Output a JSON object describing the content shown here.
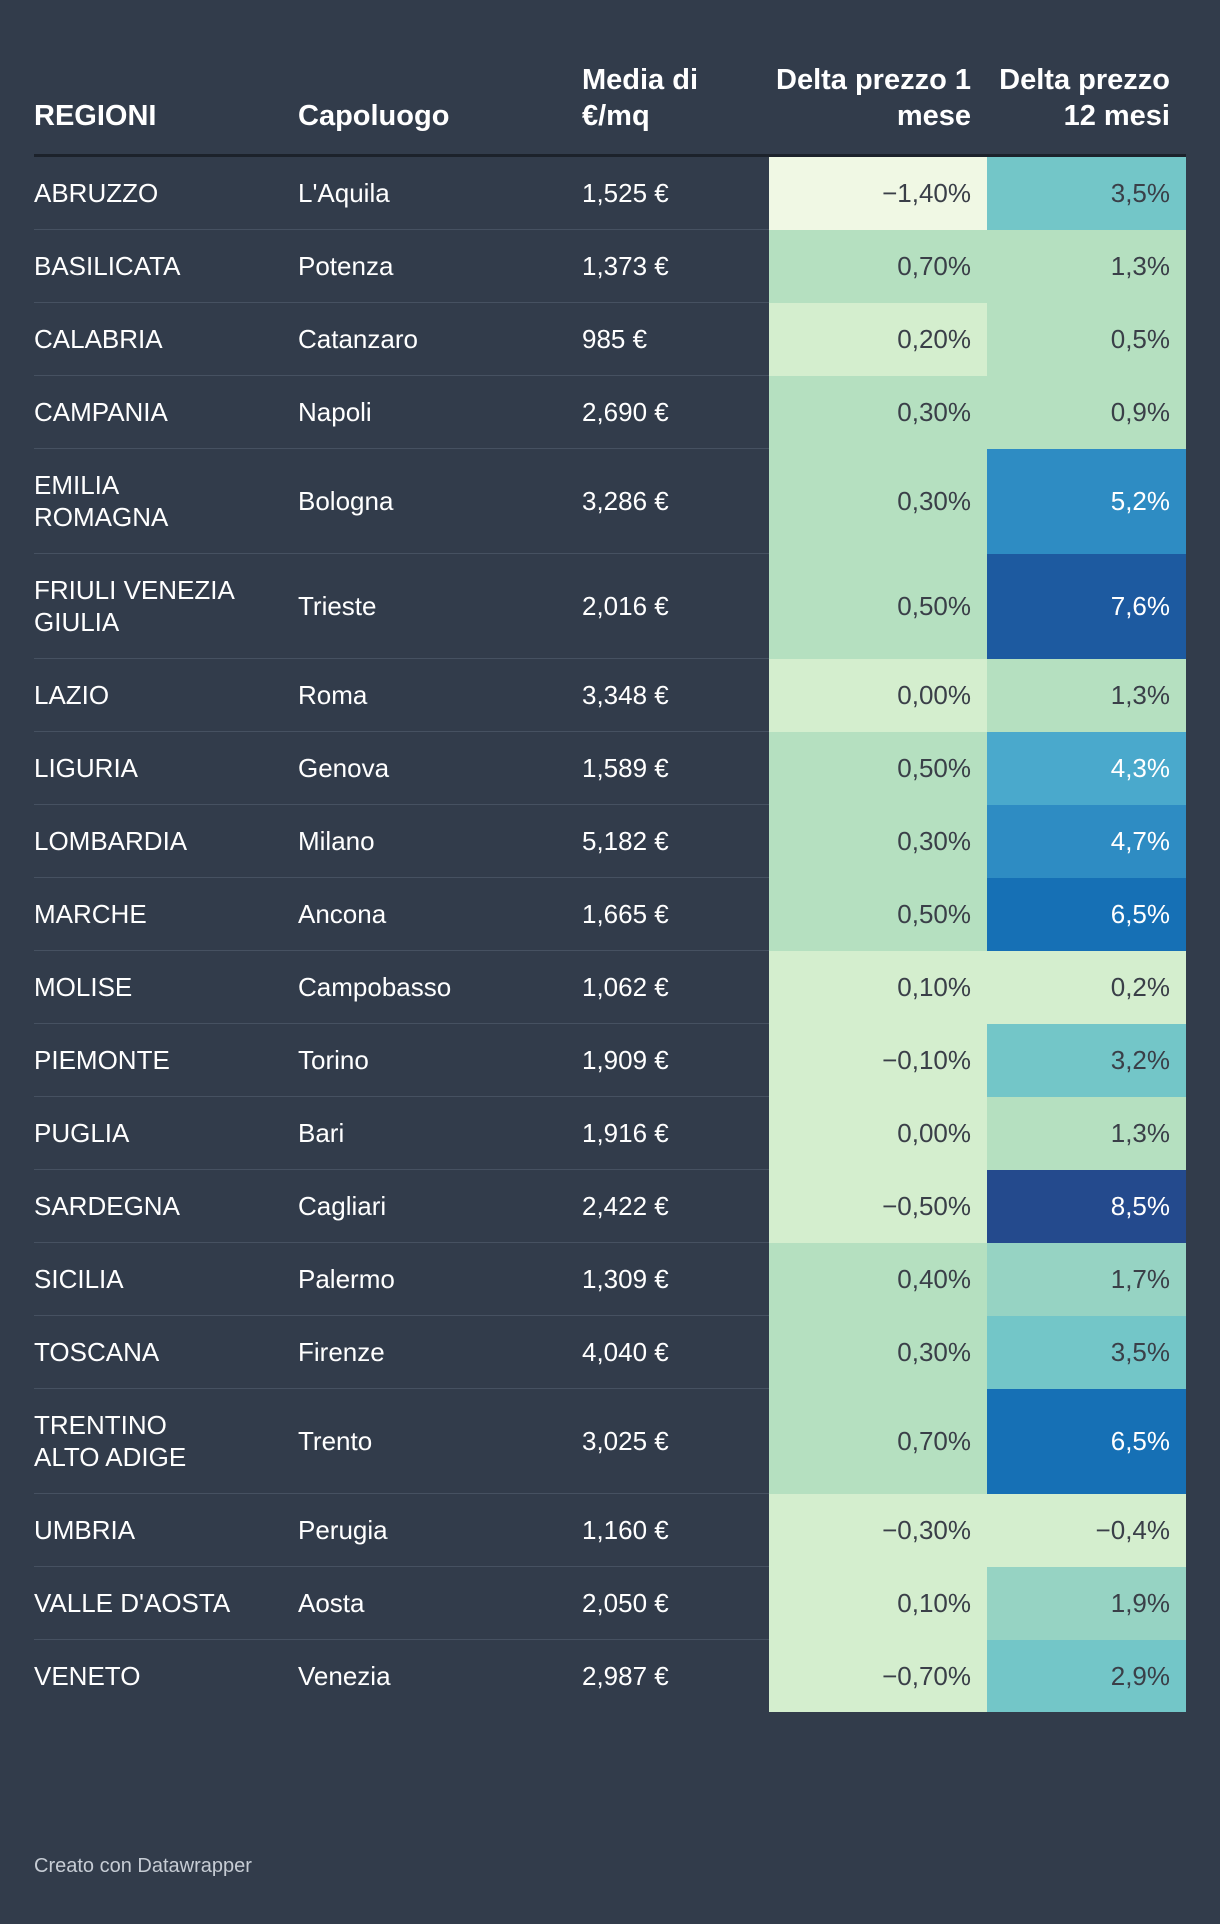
{
  "chart_data": {
    "type": "table",
    "columns": [
      "REGIONI",
      "Capoluogo",
      "Media di €/mq",
      "Delta prezzo 1 mese",
      "Delta prezzo 12 mesi"
    ],
    "rows": [
      {
        "region": "ABRUZZO",
        "capital": "L'Aquila",
        "price": "1,525 €",
        "d1": "−1,40%",
        "d12": "3,5%",
        "v1": -1.4,
        "v12": 3.5
      },
      {
        "region": "BASILICATA",
        "capital": "Potenza",
        "price": "1,373 €",
        "d1": "0,70%",
        "d12": "1,3%",
        "v1": 0.7,
        "v12": 1.3
      },
      {
        "region": "CALABRIA",
        "capital": "Catanzaro",
        "price": "985 €",
        "d1": "0,20%",
        "d12": "0,5%",
        "v1": 0.2,
        "v12": 0.5
      },
      {
        "region": "CAMPANIA",
        "capital": "Napoli",
        "price": "2,690 €",
        "d1": "0,30%",
        "d12": "0,9%",
        "v1": 0.3,
        "v12": 0.9
      },
      {
        "region": "EMILIA ROMAGNA",
        "capital": "Bologna",
        "price": "3,286 €",
        "d1": "0,30%",
        "d12": "5,2%",
        "v1": 0.3,
        "v12": 5.2
      },
      {
        "region": "FRIULI VENEZIA GIULIA",
        "capital": "Trieste",
        "price": "2,016 €",
        "d1": "0,50%",
        "d12": "7,6%",
        "v1": 0.5,
        "v12": 7.6
      },
      {
        "region": "LAZIO",
        "capital": "Roma",
        "price": "3,348 €",
        "d1": "0,00%",
        "d12": "1,3%",
        "v1": 0.0,
        "v12": 1.3
      },
      {
        "region": "LIGURIA",
        "capital": "Genova",
        "price": "1,589 €",
        "d1": "0,50%",
        "d12": "4,3%",
        "v1": 0.5,
        "v12": 4.3
      },
      {
        "region": "LOMBARDIA",
        "capital": "Milano",
        "price": "5,182 €",
        "d1": "0,30%",
        "d12": "4,7%",
        "v1": 0.3,
        "v12": 4.7
      },
      {
        "region": "MARCHE",
        "capital": "Ancona",
        "price": "1,665 €",
        "d1": "0,50%",
        "d12": "6,5%",
        "v1": 0.5,
        "v12": 6.5
      },
      {
        "region": "MOLISE",
        "capital": "Campobasso",
        "price": "1,062 €",
        "d1": "0,10%",
        "d12": "0,2%",
        "v1": 0.1,
        "v12": 0.2
      },
      {
        "region": "PIEMONTE",
        "capital": "Torino",
        "price": "1,909 €",
        "d1": "−0,10%",
        "d12": "3,2%",
        "v1": -0.1,
        "v12": 3.2
      },
      {
        "region": "PUGLIA",
        "capital": "Bari",
        "price": "1,916 €",
        "d1": "0,00%",
        "d12": "1,3%",
        "v1": 0.0,
        "v12": 1.3
      },
      {
        "region": "SARDEGNA",
        "capital": "Cagliari",
        "price": "2,422 €",
        "d1": "−0,50%",
        "d12": "8,5%",
        "v1": -0.5,
        "v12": 8.5
      },
      {
        "region": "SICILIA",
        "capital": "Palermo",
        "price": "1,309 €",
        "d1": "0,40%",
        "d12": "1,7%",
        "v1": 0.4,
        "v12": 1.7
      },
      {
        "region": "TOSCANA",
        "capital": "Firenze",
        "price": "4,040 €",
        "d1": "0,30%",
        "d12": "3,5%",
        "v1": 0.3,
        "v12": 3.5
      },
      {
        "region": "TRENTINO ALTO ADIGE",
        "capital": "Trento",
        "price": "3,025 €",
        "d1": "0,70%",
        "d12": "6,5%",
        "v1": 0.7,
        "v12": 6.5
      },
      {
        "region": "UMBRIA",
        "capital": "Perugia",
        "price": "1,160 €",
        "d1": "−0,30%",
        "d12": "−0,4%",
        "v1": -0.3,
        "v12": -0.4
      },
      {
        "region": "VALLE D'AOSTA",
        "capital": "Aosta",
        "price": "2,050 €",
        "d1": "0,10%",
        "d12": "1,9%",
        "v1": 0.1,
        "v12": 1.9
      },
      {
        "region": "VENETO",
        "capital": "Venezia",
        "price": "2,987 €",
        "d1": "−0,70%",
        "d12": "2,9%",
        "v1": -0.7,
        "v12": 2.9
      }
    ],
    "color_scale": {
      "colors": [
        "#f0f8e4",
        "#d4eece",
        "#b5e0c0",
        "#96d3c3",
        "#73c6c8",
        "#4aa9cc",
        "#2e8cc3",
        "#1670b5",
        "#1d5aa0",
        "#244a8d"
      ],
      "min": -1.4,
      "max": 8.5
    }
  },
  "footer": "Creato con Datawrapper"
}
